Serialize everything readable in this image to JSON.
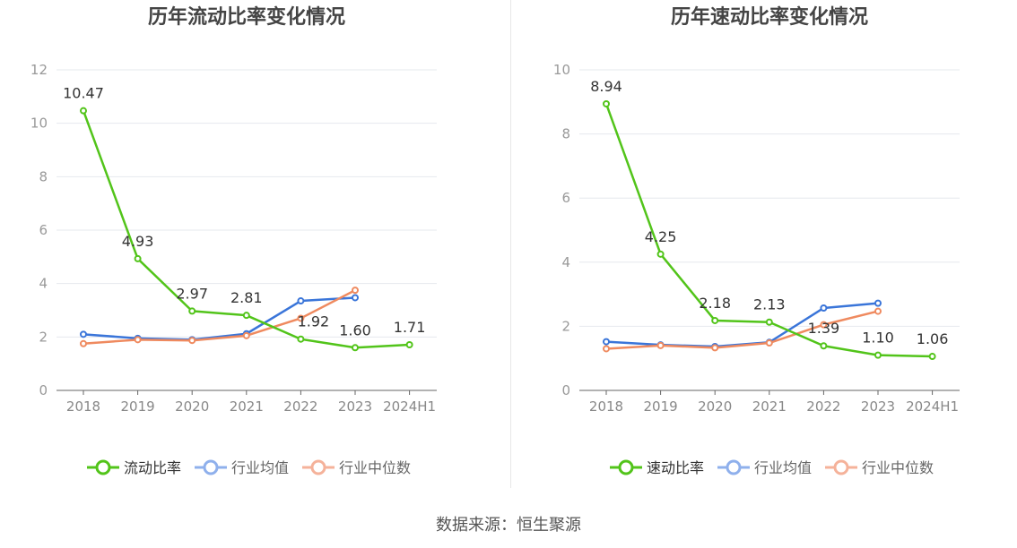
{
  "footer": {
    "source": "数据来源：恒生聚源"
  },
  "colors": {
    "primary": "#52c41a",
    "avg": "#3a75d9",
    "median": "#ef8a5f",
    "avg_legend": "#8fb0ec",
    "median_legend": "#f5b29a",
    "grid": "#e6e8ee",
    "axis": "#666666",
    "tick": "#999999",
    "x_tick": "#888888",
    "title": "#444444",
    "label": "#333333"
  },
  "chart_data": [
    {
      "type": "line",
      "title": "历年流动比率变化情况",
      "categories": [
        "2018",
        "2019",
        "2020",
        "2021",
        "2022",
        "2023",
        "2024H1"
      ],
      "ylim": [
        0,
        12
      ],
      "yticks": [
        "0",
        "2",
        "4",
        "6",
        "8",
        "10",
        "12"
      ],
      "grid": true,
      "legend_position": "bottom",
      "series": [
        {
          "name": "流动比率",
          "values": [
            10.47,
            4.93,
            2.97,
            2.81,
            1.92,
            1.6,
            1.71
          ],
          "labels": [
            "10.47",
            "4.93",
            "2.97",
            "2.81",
            "1.92",
            "1.60",
            "1.71"
          ]
        },
        {
          "name": "行业均值",
          "values": [
            2.1,
            1.95,
            1.9,
            2.12,
            3.35,
            3.47,
            null
          ]
        },
        {
          "name": "行业中位数",
          "values": [
            1.75,
            1.9,
            1.87,
            2.05,
            2.7,
            3.75,
            null
          ]
        }
      ]
    },
    {
      "type": "line",
      "title": "历年速动比率变化情况",
      "categories": [
        "2018",
        "2019",
        "2020",
        "2021",
        "2022",
        "2023",
        "2024H1"
      ],
      "ylim": [
        0,
        10
      ],
      "yticks": [
        "0",
        "2",
        "4",
        "6",
        "8",
        "10"
      ],
      "grid": true,
      "legend_position": "bottom",
      "series": [
        {
          "name": "速动比率",
          "values": [
            8.94,
            4.25,
            2.18,
            2.13,
            1.39,
            1.1,
            1.06
          ],
          "labels": [
            "8.94",
            "4.25",
            "2.18",
            "2.13",
            "1.39",
            "1.10",
            "1.06"
          ]
        },
        {
          "name": "行业均值",
          "values": [
            1.52,
            1.42,
            1.37,
            1.5,
            2.57,
            2.72,
            null
          ]
        },
        {
          "name": "行业中位数",
          "values": [
            1.3,
            1.4,
            1.33,
            1.48,
            2.05,
            2.47,
            null
          ]
        }
      ]
    }
  ]
}
